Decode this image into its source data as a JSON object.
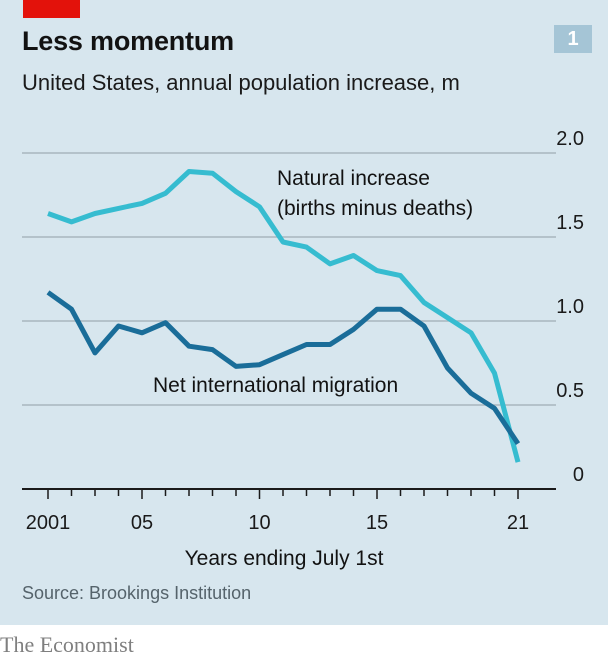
{
  "header": {
    "title": "Less momentum",
    "subtitle": "United States, annual population increase, m",
    "chart_number": "1"
  },
  "footer": {
    "source": "Source: Brookings Institution",
    "brand": "The Economist"
  },
  "colors": {
    "background": "#d7e6ee",
    "accent_red": "#e3120b",
    "natural_increase": "#36bcd0",
    "net_migration": "#1a6d99",
    "gridline": "#a9b6bd",
    "axis": "#1a1a1a",
    "badge": "#a5c5d6"
  },
  "chart_data": {
    "type": "line",
    "title": "Less momentum",
    "subtitle": "United States, annual population increase, m",
    "xlabel": "Years ending July 1st",
    "ylabel": "",
    "x": [
      2001,
      2002,
      2003,
      2004,
      2005,
      2006,
      2007,
      2008,
      2009,
      2010,
      2011,
      2012,
      2013,
      2014,
      2015,
      2016,
      2017,
      2018,
      2019,
      2020,
      2021
    ],
    "xlim": [
      2001,
      2021
    ],
    "ylim": [
      0,
      2.0
    ],
    "x_ticks": [
      2001,
      2002,
      2003,
      2004,
      2005,
      2006,
      2007,
      2008,
      2009,
      2010,
      2011,
      2012,
      2013,
      2014,
      2015,
      2016,
      2017,
      2018,
      2019,
      2020,
      2021
    ],
    "x_major_ticks": [
      2001,
      2005,
      2010,
      2015,
      2021
    ],
    "x_tick_labels": [
      "2001",
      "05",
      "10",
      "15",
      "21"
    ],
    "y_ticks": [
      0,
      0.5,
      1.0,
      1.5,
      2.0
    ],
    "y_tick_labels": [
      "0",
      "0.5",
      "1.0",
      "1.5",
      "2.0"
    ],
    "y_axis_side": "right",
    "grid": true,
    "series": [
      {
        "name": "Natural increase (births minus deaths)",
        "label_lines": [
          "Natural increase",
          "(births minus deaths)"
        ],
        "color": "#36bcd0",
        "values": [
          1.64,
          1.59,
          1.64,
          1.67,
          1.7,
          1.76,
          1.89,
          1.88,
          1.77,
          1.68,
          1.47,
          1.44,
          1.34,
          1.39,
          1.3,
          1.27,
          1.11,
          1.02,
          0.93,
          0.69,
          0.16
        ]
      },
      {
        "name": "Net international migration",
        "label_lines": [
          "Net international migration"
        ],
        "color": "#1a6d99",
        "values": [
          1.17,
          1.07,
          0.81,
          0.97,
          0.93,
          0.99,
          0.85,
          0.83,
          0.73,
          0.74,
          0.8,
          0.86,
          0.86,
          0.95,
          1.07,
          1.07,
          0.97,
          0.72,
          0.57,
          0.48,
          0.27
        ]
      }
    ],
    "legend": "inline-labels"
  }
}
